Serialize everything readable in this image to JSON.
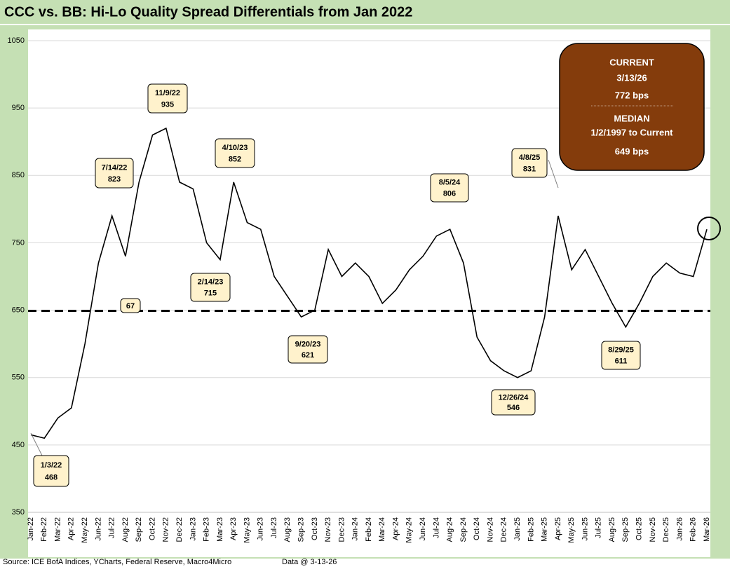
{
  "chart_data": {
    "type": "line",
    "title": "CCC vs. BB: Hi-Lo Quality Spread Differentials from Jan 2022",
    "source": "Source: ICE BofA Indices, YCharts, Federal Reserve, Macro4Micro",
    "data_date": "Data @ 3-13-26",
    "categories": [
      "Jan-22",
      "Feb-22",
      "Mar-22",
      "Apr-22",
      "May-22",
      "Jun-22",
      "Jul-22",
      "Aug-22",
      "Sep-22",
      "Oct-22",
      "Nov-22",
      "Dec-22",
      "Jan-23",
      "Feb-23",
      "Mar-23",
      "Apr-23",
      "May-23",
      "Jun-23",
      "Jul-23",
      "Aug-23",
      "Sep-23",
      "Oct-23",
      "Nov-23",
      "Dec-23",
      "Jan-24",
      "Feb-24",
      "Mar-24",
      "Apr-24",
      "May-24",
      "Jun-24",
      "Jul-24",
      "Aug-24",
      "Sep-24",
      "Oct-24",
      "Nov-24",
      "Dec-24",
      "Jan-25",
      "Feb-25",
      "Mar-25",
      "Apr-25",
      "May-25",
      "Jun-25",
      "Jul-25",
      "Aug-25",
      "Sep-25",
      "Oct-25",
      "Nov-25",
      "Dec-25",
      "Jan-26",
      "Feb-26",
      "Mar-26"
    ],
    "values": [
      465,
      460,
      490,
      505,
      600,
      720,
      790,
      730,
      840,
      910,
      920,
      840,
      830,
      750,
      725,
      840,
      780,
      770,
      700,
      670,
      640,
      650,
      740,
      700,
      720,
      700,
      660,
      680,
      710,
      730,
      760,
      770,
      720,
      610,
      575,
      560,
      550,
      560,
      640,
      790,
      710,
      740,
      700,
      660,
      625,
      660,
      700,
      720,
      705,
      700,
      770
    ],
    "color": "#000000",
    "ylim": [
      350,
      1050
    ],
    "yticks": [
      350,
      450,
      550,
      650,
      750,
      850,
      950,
      1050
    ],
    "grid": true,
    "median": {
      "value": 649,
      "label": "649 bps"
    },
    "info_box": {
      "current_title": "CURRENT",
      "current_date": "3/13/26",
      "current_value": {
        "value": 772,
        "label": "772 bps"
      },
      "median_title": "MEDIAN",
      "median_period": "1/2/1997 to Current"
    },
    "annotations": [
      {
        "date": "1/3/22",
        "value": 468
      },
      {
        "date": "7/14/22",
        "value": 823
      },
      {
        "date": "11/9/22",
        "value": 935
      },
      {
        "date": "4/10/23",
        "value": 852
      },
      {
        "date": "2/14/23",
        "value": 715
      },
      {
        "date": "9/20/23",
        "value": 621
      },
      {
        "date": "8/5/24",
        "value": 806
      },
      {
        "date": "12/26/24",
        "value": 546
      },
      {
        "date": "4/8/25",
        "value": 831
      },
      {
        "date": "8/29/25",
        "value": 611
      },
      {
        "text": "67"
      }
    ]
  }
}
